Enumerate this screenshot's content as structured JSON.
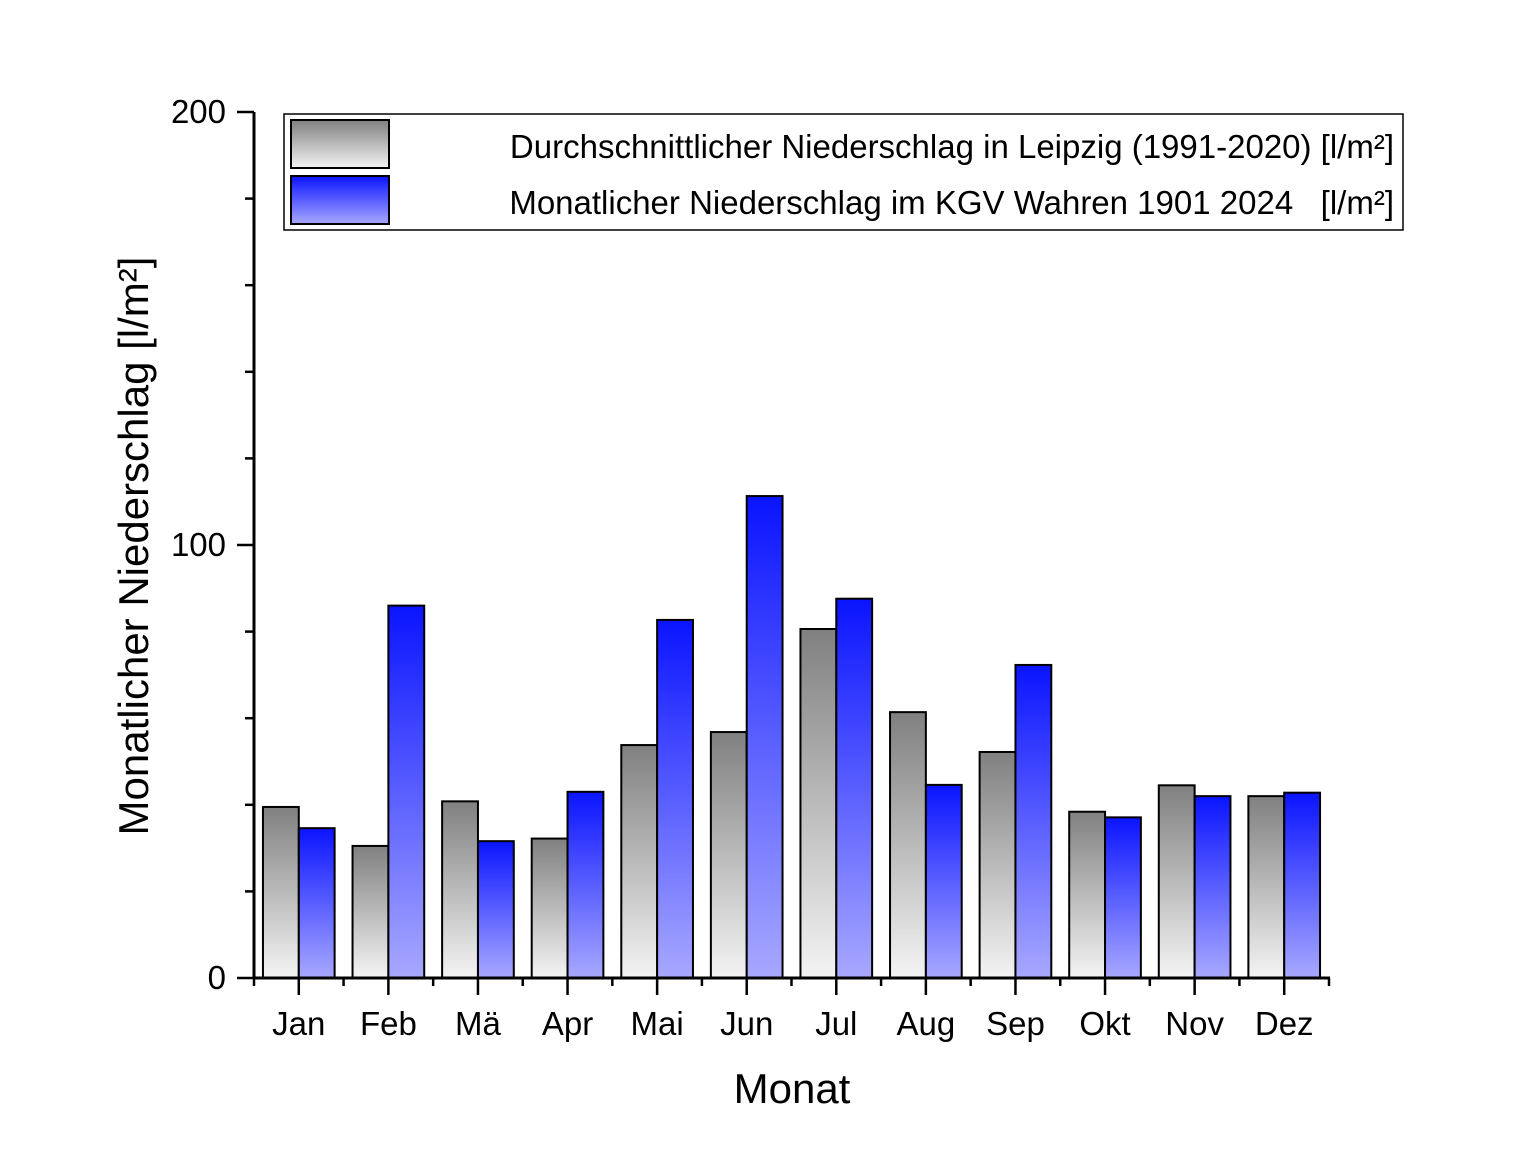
{
  "chart_data": {
    "type": "bar",
    "title": "",
    "xlabel": "Monat",
    "ylabel": "Monatlicher Niederschlag [l/m²]",
    "ylim": [
      0,
      200
    ],
    "y_ticks_major": [
      0,
      100,
      200
    ],
    "y_tick_labels": [
      "0",
      "100",
      "200"
    ],
    "y_minor_step": 20,
    "grid": false,
    "legend_position": "top-right",
    "categories": [
      "Jan",
      "Feb",
      "Mä",
      "Apr",
      "Mai",
      "Jun",
      "Jul",
      "Aug",
      "Sep",
      "Okt",
      "Nov",
      "Dez"
    ],
    "series": [
      {
        "name": "Durchschnittlicher Niederschlag in Leipzig (1991-2020) [l/m²]",
        "color_top": "#808080",
        "color_bottom": "#f4f4f4",
        "values": [
          39.5,
          30.5,
          40.8,
          32.2,
          53.8,
          56.8,
          80.6,
          61.4,
          52.2,
          38.4,
          44.5,
          42.0
        ]
      },
      {
        "name": "Monatlicher Niederschlag im KGV Wahren 1901 2024   [l/m²]",
        "color_top": "#0a14ff",
        "color_bottom": "#a8a8ff",
        "values": [
          34.6,
          86.0,
          31.6,
          43.0,
          82.7,
          111.3,
          87.6,
          44.6,
          72.3,
          37.1,
          42.0,
          42.8
        ]
      }
    ]
  }
}
